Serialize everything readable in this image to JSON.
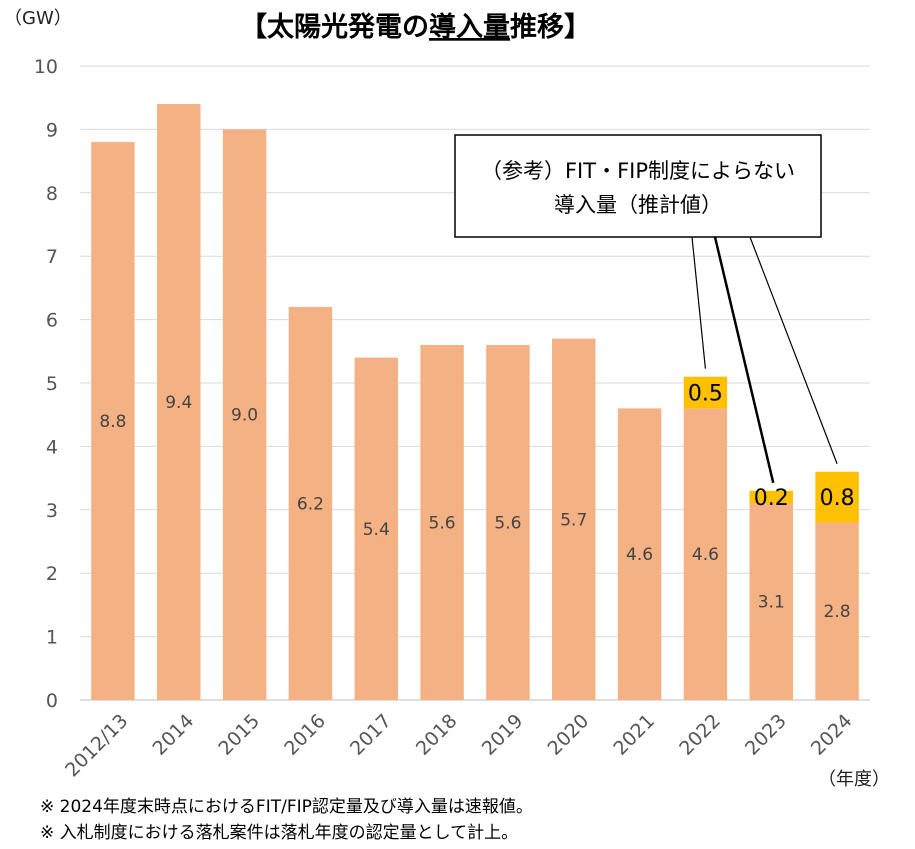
{
  "chart_data": {
    "type": "bar",
    "stacked": true,
    "title_prefix": "【太陽光発電の",
    "title_underlined": "導入量",
    "title_suffix": "推移】",
    "ylabel": "（GW）",
    "xlabel": "（年度）",
    "ylim": [
      0,
      10
    ],
    "yticks": [
      0,
      1,
      2,
      3,
      4,
      5,
      6,
      7,
      8,
      9,
      10
    ],
    "grid": true,
    "categories": [
      "2012/13",
      "2014",
      "2015",
      "2016",
      "2017",
      "2018",
      "2019",
      "2020",
      "2021",
      "2022",
      "2023",
      "2024"
    ],
    "series": [
      {
        "values": [
          8.8,
          9.4,
          9.0,
          6.2,
          5.4,
          5.6,
          5.6,
          5.7,
          4.6,
          4.6,
          3.1,
          2.8
        ],
        "labels": [
          "8.8",
          "9.4",
          "9.0",
          "6.2",
          "5.4",
          "5.6",
          "5.6",
          "5.7",
          "4.6",
          "4.6",
          "3.1",
          "2.8"
        ],
        "color": "#F4B183"
      },
      {
        "values": [
          null,
          null,
          null,
          null,
          null,
          null,
          null,
          null,
          null,
          0.5,
          0.2,
          0.8
        ],
        "labels": [
          "",
          "",
          "",
          "",
          "",
          "",
          "",
          "",
          "",
          "0.5",
          "0.2",
          "0.8"
        ],
        "color": "#FFC000"
      }
    ],
    "callout": {
      "line1": "（参考）FIT・FIP制度によらない",
      "line2": "導入量（推計値）"
    },
    "notes": [
      "※ 2024年度末時点におけるFIT/FIP認定量及び導入量は速報値。",
      "※ 入札制度における落札案件は落札年度の認定量として計上。"
    ]
  }
}
